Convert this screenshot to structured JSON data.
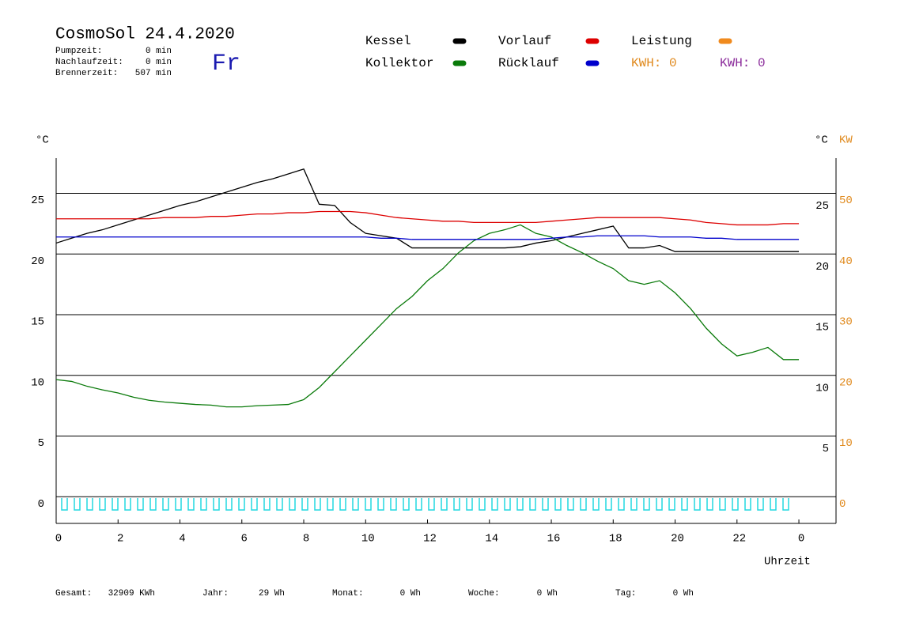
{
  "header": {
    "title": "CosmoSol 24.4.2020",
    "day": "Fr",
    "stats": [
      {
        "label": "Pumpzeit:",
        "value": "0 min"
      },
      {
        "label": "Nachlaufzeit:",
        "value": "0 min"
      },
      {
        "label": "Brennerzeit:",
        "value": "507 min"
      }
    ],
    "kwh": [
      {
        "text": "KWH: 0",
        "color": "#e08a1e"
      },
      {
        "text": "KWH: 0",
        "color": "#8a2a9a"
      }
    ]
  },
  "chart_data": {
    "type": "line",
    "y_label": "°C",
    "y2_label_c": "°C",
    "y2_label": "KW",
    "x_label": "Uhrzeit",
    "x": [
      0,
      0.5,
      1,
      1.5,
      2,
      2.5,
      3,
      3.5,
      4,
      4.5,
      5,
      5.5,
      6,
      6.5,
      7,
      7.5,
      8,
      8.5,
      9,
      9.5,
      10,
      10.5,
      11,
      11.5,
      12,
      12.5,
      13,
      13.5,
      14,
      14.5,
      15,
      15.5,
      16,
      16.5,
      17,
      17.5,
      18,
      18.5,
      19,
      19.5,
      20,
      20.5,
      21,
      21.5,
      22,
      22.5,
      23,
      23.5,
      24
    ],
    "xlim": [
      0,
      25.2
    ],
    "xticks": [
      0,
      2,
      4,
      6,
      8,
      10,
      12,
      14,
      16,
      18,
      20,
      22,
      {
        "value": 24,
        "label": "0"
      }
    ],
    "ylim": [
      -2.2,
      27.9
    ],
    "yticks": [
      0,
      5,
      10,
      15,
      20,
      25
    ],
    "y2lim": [
      -4.4,
      55.8
    ],
    "y2ticks": [
      0,
      10,
      20,
      30,
      40,
      50
    ],
    "grid": true,
    "series": [
      {
        "name": "Kessel",
        "color": "#000000",
        "values": [
          20.9,
          21.3,
          21.7,
          22.0,
          22.4,
          22.8,
          23.2,
          23.6,
          24.0,
          24.3,
          24.7,
          25.1,
          25.5,
          25.9,
          26.2,
          26.6,
          27.0,
          24.1,
          24.0,
          22.6,
          21.7,
          21.5,
          21.3,
          20.5,
          20.5,
          20.5,
          20.5,
          20.5,
          20.5,
          20.5,
          20.6,
          20.9,
          21.1,
          21.4,
          21.7,
          22.0,
          22.3,
          20.5,
          20.5,
          20.7,
          20.2,
          20.2,
          20.2,
          20.2,
          20.2,
          20.2,
          20.2,
          20.2,
          20.2
        ]
      },
      {
        "name": "Vorlauf",
        "color": "#dd0000",
        "values": [
          22.9,
          22.9,
          22.9,
          22.9,
          22.9,
          22.9,
          22.9,
          23.0,
          23.0,
          23.0,
          23.1,
          23.1,
          23.2,
          23.3,
          23.3,
          23.4,
          23.4,
          23.5,
          23.5,
          23.5,
          23.4,
          23.2,
          23.0,
          22.9,
          22.8,
          22.7,
          22.7,
          22.6,
          22.6,
          22.6,
          22.6,
          22.6,
          22.7,
          22.8,
          22.9,
          23.0,
          23.0,
          23.0,
          23.0,
          23.0,
          22.9,
          22.8,
          22.6,
          22.5,
          22.4,
          22.4,
          22.4,
          22.5,
          22.5
        ]
      },
      {
        "name": "Leistung",
        "color": "#f08a1e",
        "axis": "y2",
        "values": [
          null,
          null,
          null,
          null,
          null,
          null,
          null,
          null,
          null,
          null,
          null,
          null,
          null,
          null,
          null,
          null,
          null,
          null,
          null,
          null,
          null,
          null,
          null,
          null,
          null,
          null,
          null,
          null,
          null,
          null,
          null,
          null,
          null,
          null,
          null,
          null,
          null,
          null,
          null,
          null,
          null,
          null,
          null,
          null,
          null,
          null,
          null,
          null,
          null
        ]
      },
      {
        "name": "Kollektor",
        "color": "#0a7a0a",
        "values": [
          9.65,
          9.5,
          9.1,
          8.8,
          8.55,
          8.2,
          7.95,
          7.8,
          7.7,
          7.6,
          7.55,
          7.4,
          7.4,
          7.5,
          7.55,
          7.6,
          8.0,
          9.0,
          10.3,
          11.6,
          12.9,
          14.2,
          15.5,
          16.5,
          17.8,
          18.8,
          20.1,
          21.1,
          21.7,
          22.0,
          22.4,
          21.7,
          21.4,
          20.7,
          20.1,
          19.4,
          18.8,
          17.8,
          17.5,
          17.8,
          16.8,
          15.5,
          13.9,
          12.6,
          11.6,
          11.9,
          12.3,
          11.3,
          11.3
        ]
      },
      {
        "name": "Rücklauf",
        "color": "#0000cc",
        "values": [
          21.4,
          21.4,
          21.4,
          21.4,
          21.4,
          21.4,
          21.4,
          21.4,
          21.4,
          21.4,
          21.4,
          21.4,
          21.4,
          21.4,
          21.4,
          21.4,
          21.4,
          21.4,
          21.4,
          21.4,
          21.4,
          21.3,
          21.3,
          21.2,
          21.2,
          21.2,
          21.2,
          21.2,
          21.2,
          21.2,
          21.2,
          21.2,
          21.3,
          21.4,
          21.4,
          21.5,
          21.5,
          21.5,
          21.5,
          21.4,
          21.4,
          21.4,
          21.3,
          21.3,
          21.2,
          21.2,
          21.2,
          21.2,
          21.2
        ]
      }
    ]
  },
  "footer": [
    {
      "label": "Gesamt:",
      "value": "32909 KWh"
    },
    {
      "label": "Jahr:",
      "value": "29 Wh"
    },
    {
      "label": "Monat:",
      "value": "0 Wh"
    },
    {
      "label": "Woche:",
      "value": "0 Wh"
    },
    {
      "label": "Tag:",
      "value": "0 Wh"
    }
  ]
}
